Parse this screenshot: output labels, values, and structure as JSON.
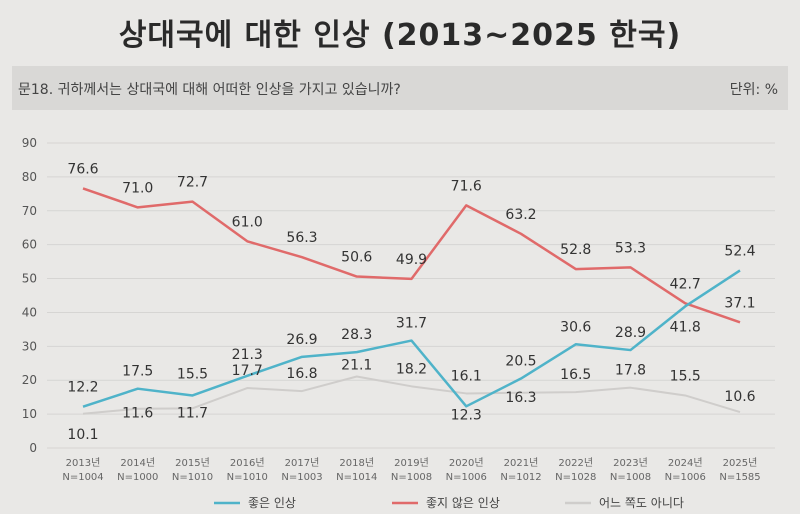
{
  "title": "상대국에 대한 인상 (2013~2025 한국)",
  "question": "문18. 귀하께서는 상대국에 대해 어떠한 인상을 가지고 있습니까?",
  "unit": "단위: %",
  "chart_data": {
    "type": "line",
    "categories": [
      "2013년",
      "2014년",
      "2015년",
      "2016년",
      "2017년",
      "2018년",
      "2019년",
      "2020년",
      "2021년",
      "2022년",
      "2023년",
      "2024년",
      "2025년"
    ],
    "sample_sizes": [
      "N=1004",
      "N=1000",
      "N=1010",
      "N=1010",
      "N=1003",
      "N=1014",
      "N=1008",
      "N=1006",
      "N=1012",
      "N=1028",
      "N=1008",
      "N=1006",
      "N=1585"
    ],
    "ylim": [
      0,
      90
    ],
    "yticks": [
      0,
      10,
      20,
      30,
      40,
      50,
      60,
      70,
      80,
      90
    ],
    "grid": true,
    "legend": "bottom",
    "series": [
      {
        "name": "좋은 인상",
        "color": "#4fb3c9",
        "values": [
          12.2,
          17.5,
          15.5,
          21.3,
          26.9,
          28.3,
          31.7,
          12.3,
          20.5,
          30.6,
          28.9,
          41.8,
          52.4
        ]
      },
      {
        "name": "좋지 않은 인상",
        "color": "#e06a6a",
        "values": [
          76.6,
          71.0,
          72.7,
          61.0,
          56.3,
          50.6,
          49.9,
          71.6,
          63.2,
          52.8,
          53.3,
          42.7,
          37.1
        ]
      },
      {
        "name": "어느 쪽도 아니다",
        "color": "#cfcdcb",
        "values": [
          10.1,
          11.6,
          11.7,
          17.7,
          16.8,
          21.1,
          18.2,
          16.1,
          16.3,
          16.5,
          17.8,
          15.5,
          10.6
        ]
      }
    ],
    "data_labels": [
      [
        "12.2",
        "17.5",
        "15.5",
        "21.3",
        "26.9",
        "28.3",
        "31.7",
        "12.3",
        "20.5",
        "30.6",
        "28.9",
        "41.8",
        "52.4"
      ],
      [
        "76.6",
        "71.0",
        "72.7",
        "61.0",
        "56.3",
        "50.6",
        "49.9",
        "71.6",
        "63.2",
        "52.8",
        "53.3",
        "42.7",
        "37.1"
      ],
      [
        "10.1",
        "11.6",
        "11.7",
        "17.7",
        "16.8",
        "21.1",
        "18.2",
        "16.1",
        "16.3",
        "16.5",
        "17.8",
        "15.5",
        "10.6"
      ]
    ]
  }
}
